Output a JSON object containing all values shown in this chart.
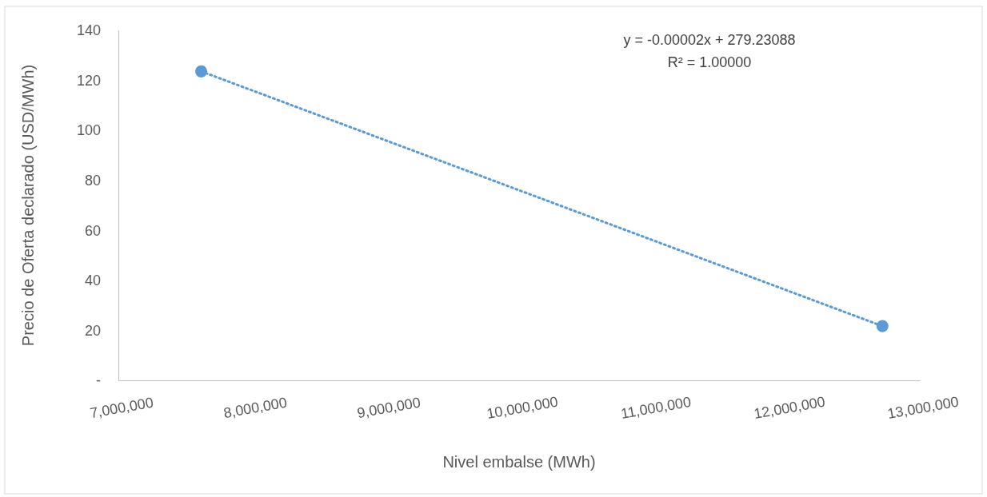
{
  "chart_data": {
    "type": "scatter",
    "xlabel": "Nivel embalse (MWh)",
    "ylabel": "Precio de Oferta declarado (USD/MWh)",
    "xlim": [
      7000000,
      13000000
    ],
    "xticks": [
      {
        "value": 7000000,
        "label": "7,000,000"
      },
      {
        "value": 8000000,
        "label": "8,000,000"
      },
      {
        "value": 9000000,
        "label": "9,000,000"
      },
      {
        "value": 10000000,
        "label": "10,000,000"
      },
      {
        "value": 11000000,
        "label": "11,000,000"
      },
      {
        "value": 12000000,
        "label": "12,000,000"
      },
      {
        "value": 13000000,
        "label": "13,000,000"
      }
    ],
    "ylim": [
      0,
      140
    ],
    "yticks": [
      {
        "value": 0,
        "label": "-"
      },
      20,
      40,
      60,
      80,
      100,
      120,
      140
    ],
    "grid": false,
    "x": [
      7620000,
      12720000
    ],
    "series": [
      {
        "type": "scatter",
        "color": "#5b9bd5",
        "marker": "circle",
        "values": [
          123.6,
          21.7
        ]
      },
      {
        "type": "line",
        "color": "#5b9bd5",
        "line_style": "dotted",
        "values": [
          123.6,
          21.7
        ]
      }
    ],
    "annotations": [
      "y = -0.00002x + 279.23088",
      "R² = 1.00000"
    ]
  }
}
